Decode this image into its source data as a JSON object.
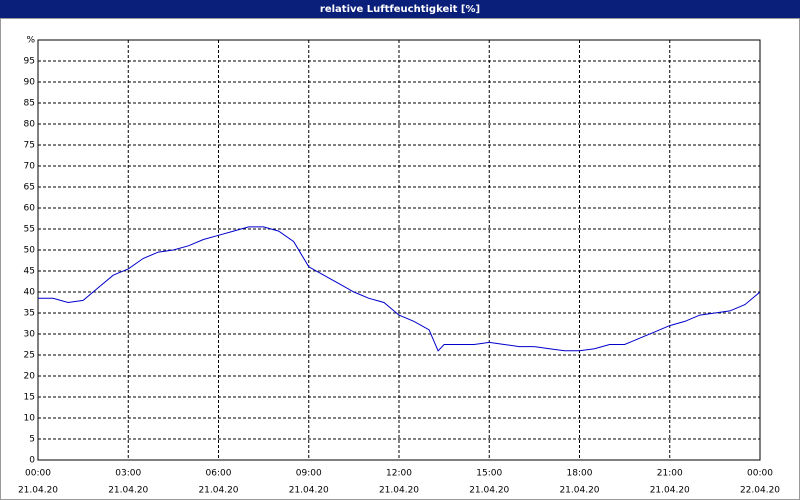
{
  "chart_data": {
    "type": "line",
    "title": "relative Luftfeuchtigkeit [%]",
    "x": [
      0,
      0.5,
      1,
      1.5,
      2,
      2.5,
      3,
      3.5,
      4,
      4.5,
      5,
      5.5,
      6,
      6.5,
      7,
      7.5,
      8,
      8.5,
      9,
      9.5,
      10,
      10.5,
      11,
      11.5,
      12,
      12.5,
      13,
      13.3,
      13.5,
      14,
      14.5,
      15,
      15.5,
      16,
      16.5,
      17,
      17.5,
      18,
      18.5,
      19,
      19.5,
      20,
      20.5,
      21,
      21.5,
      22,
      22.5,
      23,
      23.5,
      24
    ],
    "series": [
      {
        "name": "relative Luftfeuchtigkeit",
        "color": "#0000cc",
        "values": [
          38.5,
          38.5,
          37.5,
          38,
          41,
          44,
          45.5,
          48,
          49.5,
          50,
          51,
          52.5,
          53.5,
          54.5,
          55.5,
          55.5,
          54.5,
          52,
          46,
          44,
          42,
          40,
          38.5,
          37.5,
          34.5,
          33,
          31,
          26,
          27.5,
          27.5,
          27.5,
          28,
          27.5,
          27,
          27,
          26.5,
          26,
          26,
          26.5,
          27.5,
          27.5,
          29,
          30.5,
          32,
          33,
          34.5,
          35,
          35.5,
          37,
          40
        ]
      }
    ],
    "xlim": [
      0,
      24
    ],
    "xticks": [
      {
        "value": 0,
        "label": "00:00",
        "date": "21.04.20"
      },
      {
        "value": 3,
        "label": "03:00",
        "date": "21.04.20"
      },
      {
        "value": 6,
        "label": "06:00",
        "date": "21.04.20"
      },
      {
        "value": 9,
        "label": "09:00",
        "date": "21.04.20"
      },
      {
        "value": 12,
        "label": "12:00",
        "date": "21.04.20"
      },
      {
        "value": 15,
        "label": "15:00",
        "date": "21.04.20"
      },
      {
        "value": 18,
        "label": "18:00",
        "date": "21.04.20"
      },
      {
        "value": 21,
        "label": "21:00",
        "date": "21.04.20"
      },
      {
        "value": 24,
        "label": "00:00",
        "date": "22.04.20"
      }
    ],
    "ylim": [
      0,
      100
    ],
    "yticks": [
      0,
      5,
      10,
      15,
      20,
      25,
      30,
      35,
      40,
      45,
      50,
      55,
      60,
      65,
      70,
      75,
      80,
      85,
      90,
      95,
      {
        "value": 100,
        "label": "%"
      }
    ],
    "grid": true
  }
}
